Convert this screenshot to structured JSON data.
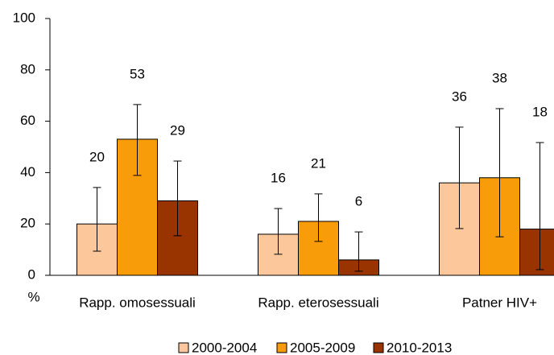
{
  "chart_data": {
    "type": "bar",
    "y_label": "%",
    "categories": [
      "Rapp. omosessuali",
      "Rapp. eterosessuali",
      "Patner HIV+"
    ],
    "series": [
      {
        "name": "2000-2004",
        "color": "#fcc89b",
        "values": [
          20,
          16,
          36
        ],
        "lower": [
          9.4,
          8.2,
          18.2
        ],
        "upper": [
          34.2,
          26,
          57.7
        ]
      },
      {
        "name": "2005-2009",
        "color": "#f99c0a",
        "values": [
          53,
          21,
          38
        ],
        "lower": [
          38.9,
          13.2,
          15
        ],
        "upper": [
          66.5,
          31.7,
          64.9
        ]
      },
      {
        "name": "2010-2013",
        "color": "#993300",
        "values": [
          29,
          6,
          18
        ],
        "lower": [
          15.4,
          1.6,
          2.2
        ],
        "upper": [
          44.5,
          16.9,
          51.7
        ]
      }
    ],
    "ylim": [
      0,
      100
    ],
    "yticks": [
      0,
      20,
      40,
      60,
      80,
      100
    ],
    "legend": "bottom"
  }
}
